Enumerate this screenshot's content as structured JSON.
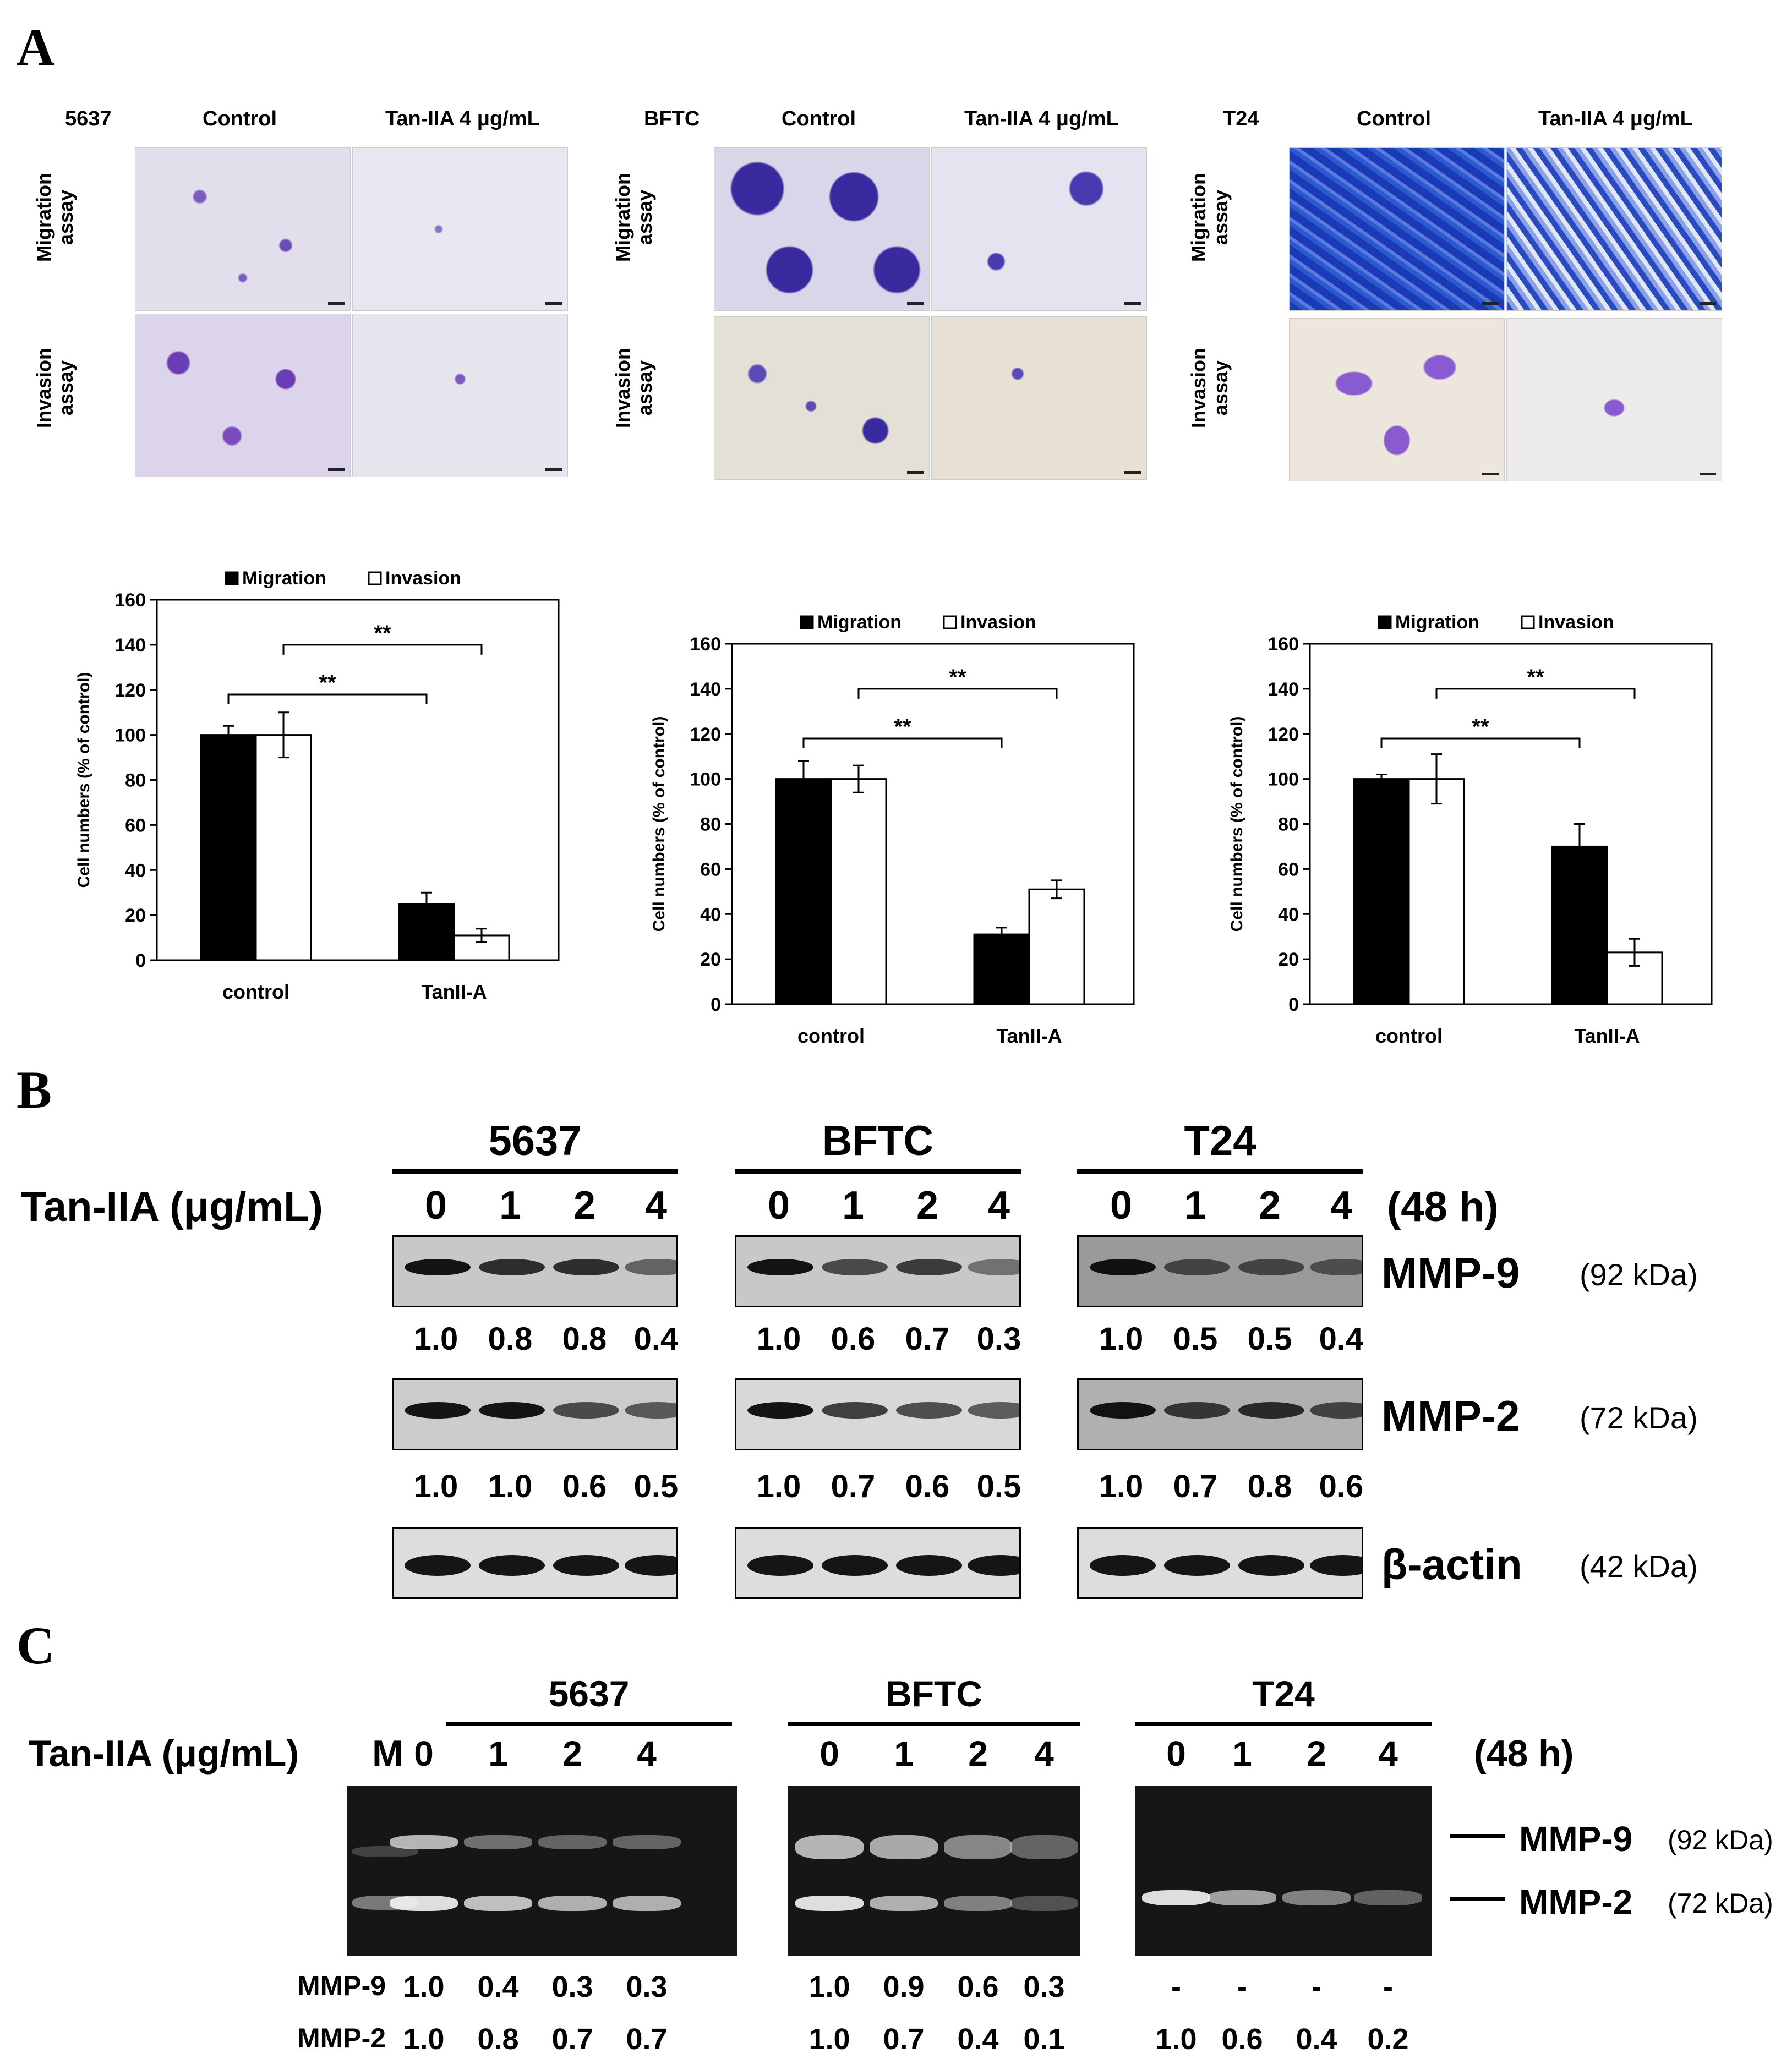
{
  "panels": {
    "a": "A",
    "b": "B",
    "c": "C"
  },
  "panel_a": {
    "groups": [
      {
        "cell_line": "5637",
        "col1": "Control",
        "col2": "Tan-IIA 4 μg/mL",
        "row1": [
          "Migration",
          "assay"
        ],
        "row2": [
          "Invasion",
          "assay"
        ]
      },
      {
        "cell_line": "BFTC",
        "col1": "Control",
        "col2": "Tan-IIA 4 μg/mL",
        "row1": [
          "Migration",
          "assay"
        ],
        "row2": [
          "Invasion",
          "assay"
        ]
      },
      {
        "cell_line": "T24",
        "col1": "Control",
        "col2": "Tan-IIA 4 μg/mL",
        "row1": [
          "Migration",
          "assay"
        ],
        "row2": [
          "Invasion",
          "assay"
        ]
      }
    ]
  },
  "chart_data": [
    {
      "type": "bar",
      "categories": [
        "control",
        "TanII-A"
      ],
      "series": [
        {
          "name": "Migration",
          "values": [
            100,
            25
          ],
          "errors": [
            4,
            5
          ]
        },
        {
          "name": "Invasion",
          "values": [
            100,
            11
          ],
          "errors": [
            10,
            3
          ]
        }
      ],
      "ylabel": "Cell numbers (% of control)",
      "ylim": [
        0,
        160
      ],
      "yticks": [
        0,
        20,
        40,
        60,
        80,
        100,
        120,
        140,
        160
      ],
      "significance": [
        "**",
        "**"
      ],
      "legend_position": "top"
    },
    {
      "type": "bar",
      "categories": [
        "control",
        "TanII-A"
      ],
      "series": [
        {
          "name": "Migration",
          "values": [
            100,
            31
          ],
          "errors": [
            8,
            3
          ]
        },
        {
          "name": "Invasion",
          "values": [
            100,
            51
          ],
          "errors": [
            6,
            4
          ]
        }
      ],
      "ylabel": "Cell numbers (% of control)",
      "ylim": [
        0,
        160
      ],
      "yticks": [
        0,
        20,
        40,
        60,
        80,
        100,
        120,
        140,
        160
      ],
      "significance": [
        "**",
        "**"
      ],
      "legend_position": "top"
    },
    {
      "type": "bar",
      "categories": [
        "control",
        "TanII-A"
      ],
      "series": [
        {
          "name": "Migration",
          "values": [
            100,
            70
          ],
          "errors": [
            2,
            10
          ]
        },
        {
          "name": "Invasion",
          "values": [
            100,
            23
          ],
          "errors": [
            11,
            6
          ]
        }
      ],
      "ylabel": "Cell numbers (% of control)",
      "ylim": [
        0,
        160
      ],
      "yticks": [
        0,
        20,
        40,
        60,
        80,
        100,
        120,
        140,
        160
      ],
      "significance": [
        "**",
        "**"
      ],
      "legend_position": "top"
    }
  ],
  "panel_b": {
    "treatment_label": "Tan-IIA (μg/mL)",
    "time_label": "(48 h)",
    "lanes": [
      "0",
      "1",
      "2",
      "4"
    ],
    "groups": [
      {
        "name": "5637",
        "mmp9": [
          "1.0",
          "0.8",
          "0.8",
          "0.4"
        ],
        "mmp2": [
          "1.0",
          "1.0",
          "0.6",
          "0.5"
        ]
      },
      {
        "name": "BFTC",
        "mmp9": [
          "1.0",
          "0.6",
          "0.7",
          "0.3"
        ],
        "mmp2": [
          "1.0",
          "0.7",
          "0.6",
          "0.5"
        ]
      },
      {
        "name": "T24",
        "mmp9": [
          "1.0",
          "0.5",
          "0.5",
          "0.4"
        ],
        "mmp2": [
          "1.0",
          "0.7",
          "0.8",
          "0.6"
        ]
      }
    ],
    "proteins": [
      {
        "name": "MMP-9",
        "kda": "(92 kDa)"
      },
      {
        "name": "MMP-2",
        "kda": "(72 kDa)"
      },
      {
        "name": "β-actin",
        "kda": "(42 kDa)"
      }
    ]
  },
  "panel_c": {
    "treatment_label": "Tan-IIA (μg/mL)",
    "marker_label": "M",
    "time_label": "(48 h)",
    "lanes": [
      "0",
      "1",
      "2",
      "4"
    ],
    "row_labels": [
      "MMP-9",
      "MMP-2"
    ],
    "groups": [
      {
        "name": "5637",
        "mmp9": [
          "1.0",
          "0.4",
          "0.3",
          "0.3"
        ],
        "mmp2": [
          "1.0",
          "0.8",
          "0.7",
          "0.7"
        ]
      },
      {
        "name": "BFTC",
        "mmp9": [
          "1.0",
          "0.9",
          "0.6",
          "0.3"
        ],
        "mmp2": [
          "1.0",
          "0.7",
          "0.4",
          "0.1"
        ]
      },
      {
        "name": "T24",
        "mmp9": [
          "-",
          "-",
          "-",
          "-"
        ],
        "mmp2": [
          "1.0",
          "0.6",
          "0.4",
          "0.2"
        ]
      }
    ],
    "bands": [
      {
        "name": "MMP-9",
        "kda": "(92 kDa)"
      },
      {
        "name": "MMP-2",
        "kda": "(72 kDa)"
      }
    ]
  }
}
